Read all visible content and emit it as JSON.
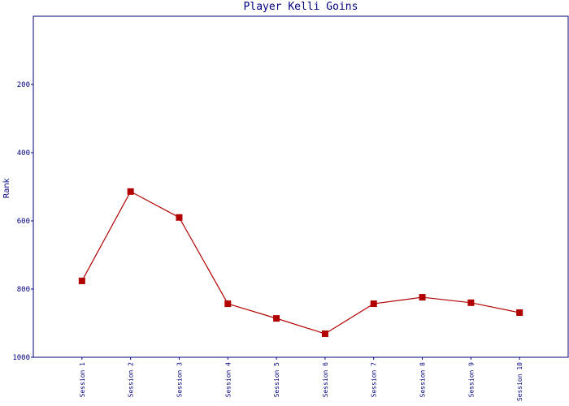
{
  "chart_data": {
    "type": "line",
    "title": "Player Kelli Goins",
    "y_label": "Rank",
    "categories": [
      "Session 1",
      "Session 2",
      "Session 3",
      "Session 4",
      "Session 5",
      "Session 6",
      "Session 7",
      "Session 8",
      "Session 9",
      "Session 10"
    ],
    "series": [
      {
        "name": "Rank",
        "color": "#b00000",
        "values": [
          776,
          514,
          590,
          843,
          886,
          931,
          843,
          824,
          840,
          869
        ]
      }
    ],
    "ylim": [
      1000,
      0
    ],
    "yticks": [
      200,
      400,
      600,
      800,
      1000
    ],
    "grid": false
  }
}
